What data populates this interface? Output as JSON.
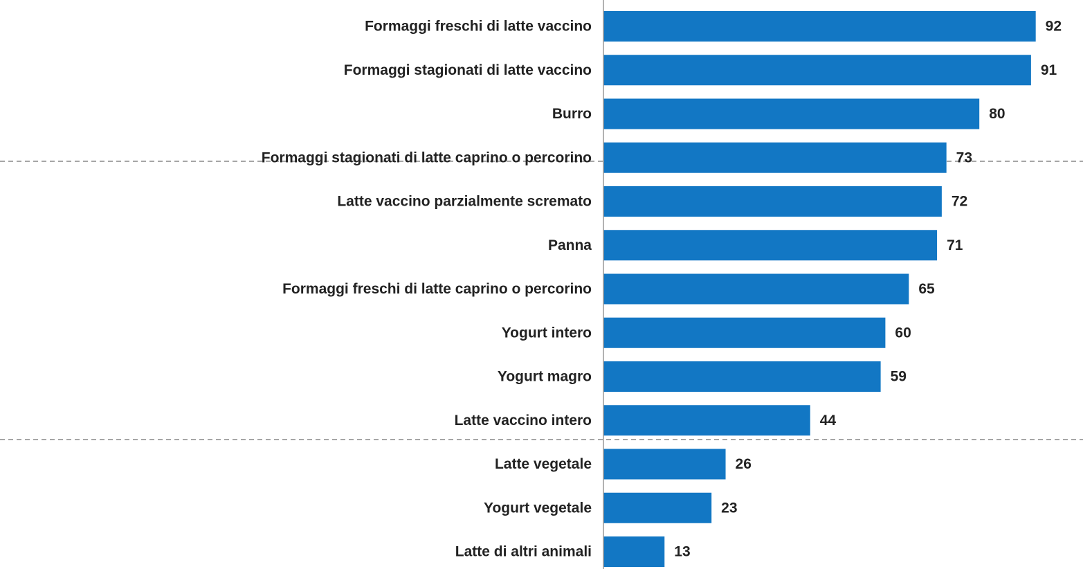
{
  "chart_data": {
    "type": "bar",
    "orientation": "horizontal",
    "categories": [
      "Formaggi freschi di latte vaccino",
      "Formaggi stagionati di latte vaccino",
      "Burro",
      "Formaggi stagionati di latte caprino o percorino",
      "Latte vaccino parzialmente scremato",
      "Panna",
      "Formaggi freschi di latte caprino o percorino",
      "Yogurt intero",
      "Yogurt magro",
      "Latte vaccino intero",
      "Latte vegetale",
      "Yogurt vegetale",
      "Latte di altri animali"
    ],
    "values": [
      92,
      91,
      80,
      73,
      72,
      71,
      65,
      60,
      59,
      44,
      26,
      23,
      13
    ],
    "color": "#1277c4",
    "xlim": [
      0,
      100
    ]
  }
}
